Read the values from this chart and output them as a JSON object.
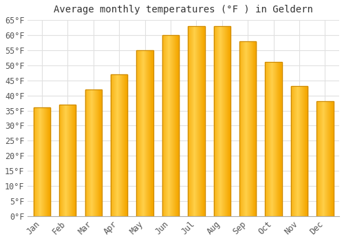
{
  "title": "Average monthly temperatures (°F ) in Geldern",
  "months": [
    "Jan",
    "Feb",
    "Mar",
    "Apr",
    "May",
    "Jun",
    "Jul",
    "Aug",
    "Sep",
    "Oct",
    "Nov",
    "Dec"
  ],
  "values": [
    36,
    37,
    42,
    47,
    55,
    60,
    63,
    63,
    58,
    51,
    43,
    38
  ],
  "bar_color_light": "#FFD04A",
  "bar_color_dark": "#F5A800",
  "bar_edge_color": "#CC8800",
  "background_color": "#FFFFFF",
  "grid_color": "#E0E0E0",
  "ylim": [
    0,
    65
  ],
  "ytick_step": 5,
  "title_fontsize": 10,
  "tick_fontsize": 8.5,
  "font_family": "monospace"
}
